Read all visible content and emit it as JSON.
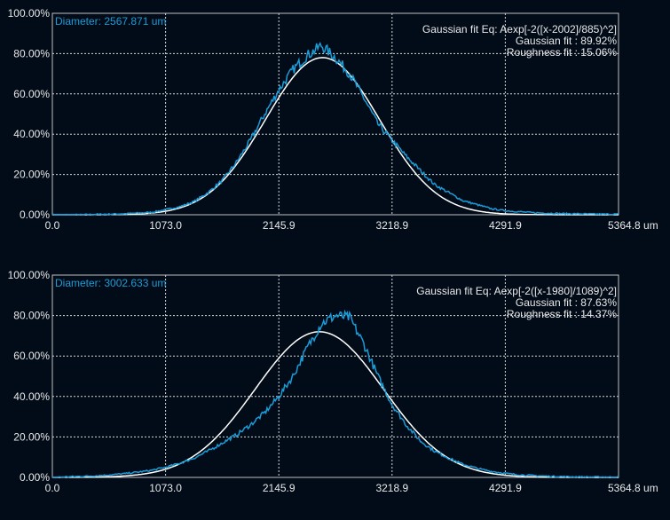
{
  "colors": {
    "background": "#020c18",
    "measured": "#1a9cd8",
    "fit": "#ffffff",
    "grid": "#d8d8d8"
  },
  "chart_data": [
    {
      "type": "line",
      "diameter_label": "Diameter: 2567.871 um",
      "equation": "Gaussian fit Eq: Aexp[-2([x-2002]/885)^2]",
      "gaussian_fit": "Gaussian fit : 89.92%",
      "roughness_fit": "Roughness fit : 15.06%",
      "xlim": [
        0,
        5364.8
      ],
      "ylim": [
        0,
        100
      ],
      "x_ticks": [
        "0.0",
        "1073.0",
        "2145.9",
        "3218.9",
        "4291.9",
        "5364.8 um"
      ],
      "y_ticks": [
        "0.00%",
        "20.00%",
        "40.00%",
        "60.00%",
        "80.00%",
        "100.00%"
      ],
      "grid": true,
      "series": [
        {
          "name": "measured",
          "x_step": 134.12,
          "values": [
            0,
            0,
            0,
            0.2,
            0.3,
            0.5,
            0.8,
            1.2,
            2.5,
            4,
            6.5,
            11,
            17,
            26,
            37,
            50,
            62,
            72,
            79,
            84,
            78,
            70,
            58,
            45,
            37,
            29,
            22,
            15,
            11,
            7,
            5,
            3,
            2,
            1.5,
            1,
            0.8,
            0.6,
            0.5,
            0.4,
            0.3,
            0.3
          ]
        },
        {
          "name": "gaussian_fit",
          "peak": 78,
          "center": 2560,
          "width": 1080
        }
      ]
    },
    {
      "type": "line",
      "diameter_label": "Diameter: 3002.633 um",
      "equation": "Gaussian fit Eq: Aexp[-2([x-1980]/1089)^2]",
      "gaussian_fit": "Gaussian fit : 87.63%",
      "roughness_fit": "Roughness fit : 14.37%",
      "xlim": [
        0,
        5364.8
      ],
      "ylim": [
        0,
        100
      ],
      "x_ticks": [
        "0.0",
        "1073.0",
        "2145.9",
        "3218.9",
        "4291.9",
        "5364.8 um"
      ],
      "y_ticks": [
        "0.00%",
        "20.00%",
        "40.00%",
        "60.00%",
        "80.00%",
        "100.00%"
      ],
      "grid": true,
      "series": [
        {
          "name": "measured",
          "x_step": 134.12,
          "values": [
            0,
            0.3,
            0.5,
            0.8,
            1.2,
            1.8,
            2.6,
            3.5,
            5,
            7,
            9.5,
            13,
            17,
            21,
            26,
            32,
            40,
            50,
            64,
            76,
            80,
            79,
            66,
            50,
            36,
            26,
            18,
            13,
            9.5,
            6.5,
            4.5,
            3,
            2,
            1.3,
            0.9,
            0.6,
            0.4,
            0.3,
            0.2,
            0.2,
            0.1
          ]
        },
        {
          "name": "gaussian_fit",
          "peak": 72,
          "center": 2530,
          "width": 1215
        }
      ]
    }
  ]
}
